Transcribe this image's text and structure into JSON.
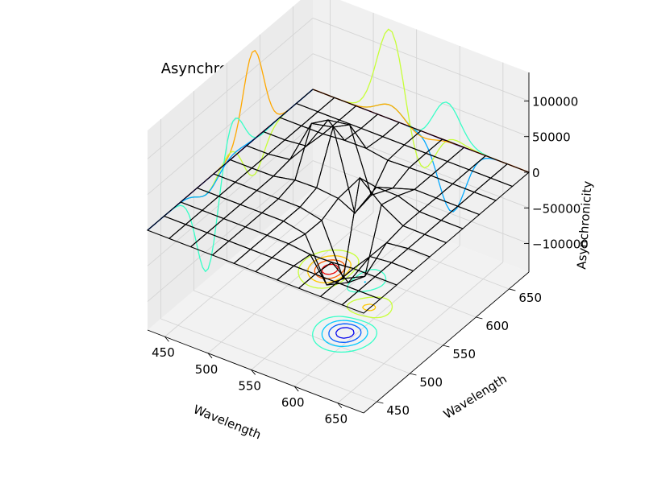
{
  "chart_data": {
    "type": "surface-3d",
    "title": "Asynchronous Spectrum (0.0-1069.0 full units)",
    "x_axis": {
      "label": "Wavelength",
      "ticks": [
        450,
        500,
        550,
        600,
        650
      ],
      "range": [
        430,
        680
      ]
    },
    "y_axis": {
      "label": "Wavelength",
      "ticks": [
        450,
        500,
        550,
        600,
        650
      ],
      "range": [
        430,
        680
      ]
    },
    "z_axis": {
      "label": "Asynchronicity",
      "ticks": [
        -100000,
        -50000,
        0,
        50000,
        100000
      ],
      "tick_labels": [
        "−100000",
        "−50000",
        "0",
        "50000",
        "100000"
      ],
      "range": [
        -140000,
        140000
      ]
    },
    "peaks": [
      {
        "x": 520,
        "y": 590,
        "z": 130000
      },
      {
        "x": 590,
        "y": 520,
        "z": -130000
      },
      {
        "x": 585,
        "y": 560,
        "z": 60000
      },
      {
        "x": 555,
        "y": 590,
        "z": -60000
      }
    ],
    "colors": {
      "surface_high": "#fff0a0",
      "surface_low": "#ff9a4a",
      "contour_colormap": "jet"
    },
    "grid": true
  }
}
